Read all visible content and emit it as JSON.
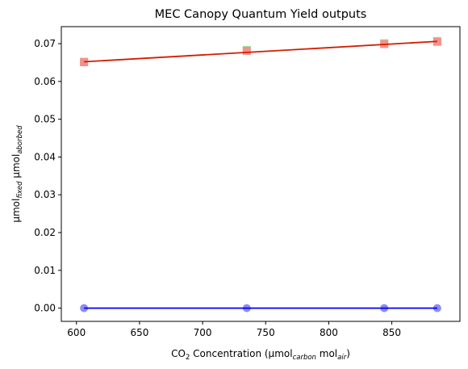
{
  "chart_data": {
    "type": "line",
    "title": "MEC Canopy Quantum Yield outputs",
    "xlabel": {
      "parts": [
        {
          "t": "CO",
          "s": "normal"
        },
        {
          "t": "2",
          "s": "sub"
        },
        {
          "t": " Concentration (µmol",
          "s": "normal"
        },
        {
          "t": "carbon",
          "s": "sub-italic"
        },
        {
          "t": " mol",
          "s": "normal"
        },
        {
          "t": "air",
          "s": "sub-italic"
        },
        {
          "t": ")",
          "s": "normal"
        }
      ]
    },
    "ylabel": {
      "parts": [
        {
          "t": "µmol",
          "s": "normal"
        },
        {
          "t": "fixed",
          "s": "sub-italic"
        },
        {
          "t": " µmol",
          "s": "normal"
        },
        {
          "t": "aborbed",
          "s": "sub-italic"
        }
      ]
    },
    "xlim": [
      588,
      904
    ],
    "ylim": [
      -0.0035,
      0.0745
    ],
    "xticks": [
      600,
      650,
      700,
      750,
      800,
      850
    ],
    "yticks": [
      0.0,
      0.01,
      0.02,
      0.03,
      0.04,
      0.05,
      0.06,
      0.07
    ],
    "ytick_labels": [
      "0.00",
      "0.01",
      "0.02",
      "0.03",
      "0.04",
      "0.05",
      "0.06",
      "0.07"
    ],
    "grid": false,
    "series": [
      {
        "marker": "square",
        "color": "#90ee90",
        "x": [
          606,
          735,
          844,
          886
        ],
        "y": [
          0.0652,
          0.0683,
          0.0701,
          0.0707
        ]
      },
      {
        "marker": "square",
        "color": "#f4908b",
        "x": [
          606,
          735,
          844,
          886
        ],
        "y": [
          0.0651,
          0.0681,
          0.0699,
          0.0705
        ]
      },
      {
        "marker": "circle",
        "color": "#8c8cf2",
        "x": [
          606,
          735,
          844,
          886
        ],
        "y": [
          0.0,
          0.0,
          0.0,
          0.0
        ]
      }
    ],
    "fit_lines": [
      {
        "color": "#d41c00",
        "x": [
          606,
          886
        ],
        "y": [
          0.0652,
          0.0706
        ]
      },
      {
        "color": "#0000ff",
        "x": [
          606,
          886
        ],
        "y": [
          0.0,
          0.0
        ]
      }
    ]
  }
}
